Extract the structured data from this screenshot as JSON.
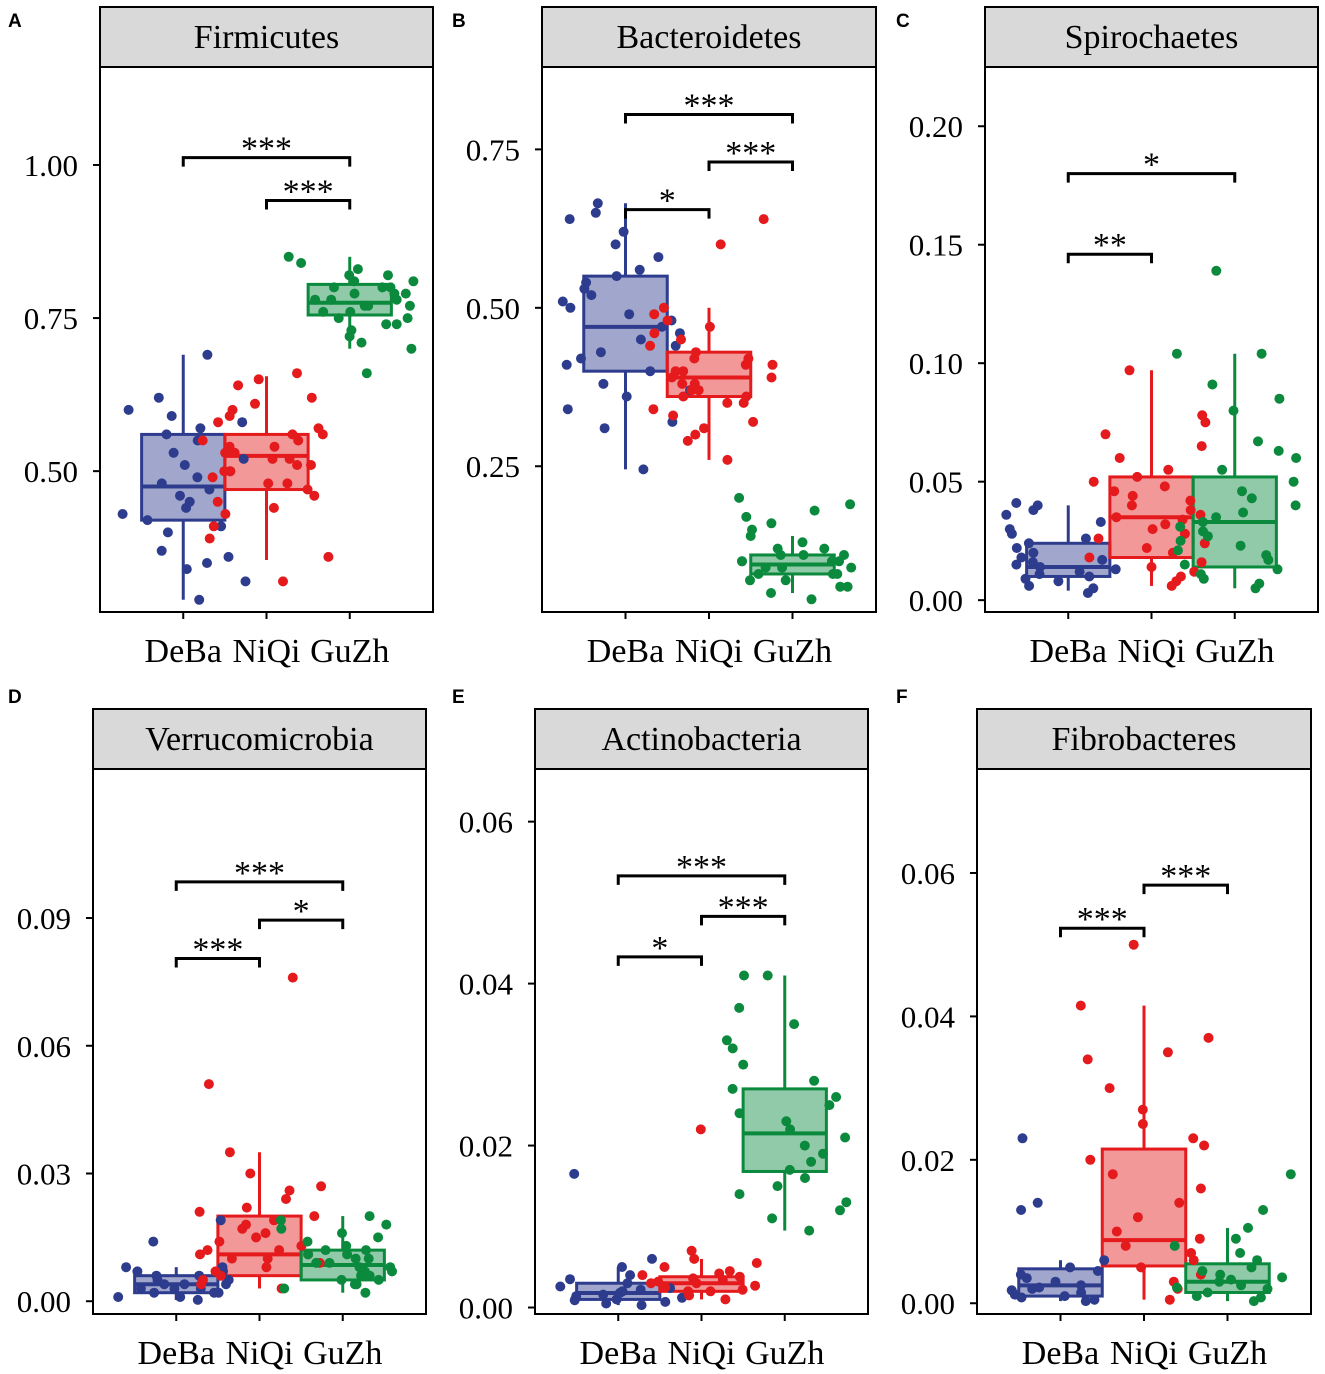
{
  "colors": {
    "DeBa": "#2E3C8E",
    "NiQi": "#E41A1C",
    "GuZh": "#0B8A3E",
    "strip_bg": "#D9D9D9"
  },
  "chart_data": [
    {
      "type": "box",
      "panel": "A",
      "title": "Firmicutes",
      "ylim": [
        0.27,
        1.16
      ],
      "yticks": [
        0.5,
        0.75,
        1.0
      ],
      "ytick_labels": [
        "0.50",
        "0.75",
        "1.00"
      ],
      "categories": [
        "DeBa",
        "NiQi",
        "GuZh"
      ],
      "boxes": [
        {
          "q1": 0.42,
          "median": 0.475,
          "q3": 0.56,
          "whisker_low": 0.29,
          "whisker_high": 0.69
        },
        {
          "q1": 0.47,
          "median": 0.525,
          "q3": 0.56,
          "whisker_low": 0.355,
          "whisker_high": 0.655
        },
        {
          "q1": 0.755,
          "median": 0.775,
          "q3": 0.805,
          "whisker_low": 0.7,
          "whisker_high": 0.85
        }
      ],
      "points": [
        [
          0.29,
          0.32,
          0.34,
          0.35,
          0.36,
          0.37,
          0.4,
          0.41,
          0.42,
          0.43,
          0.44,
          0.45,
          0.46,
          0.47,
          0.48,
          0.49,
          0.5,
          0.51,
          0.52,
          0.53,
          0.55,
          0.56,
          0.57,
          0.58,
          0.59,
          0.6,
          0.62,
          0.69
        ],
        [
          0.32,
          0.36,
          0.39,
          0.41,
          0.43,
          0.44,
          0.45,
          0.46,
          0.47,
          0.48,
          0.48,
          0.49,
          0.5,
          0.5,
          0.51,
          0.51,
          0.52,
          0.52,
          0.53,
          0.53,
          0.54,
          0.54,
          0.55,
          0.55,
          0.56,
          0.56,
          0.57,
          0.58,
          0.59,
          0.6,
          0.61,
          0.62,
          0.64,
          0.65,
          0.66
        ],
        [
          0.66,
          0.7,
          0.71,
          0.72,
          0.73,
          0.74,
          0.74,
          0.75,
          0.75,
          0.76,
          0.76,
          0.77,
          0.77,
          0.77,
          0.78,
          0.78,
          0.78,
          0.79,
          0.79,
          0.79,
          0.8,
          0.8,
          0.8,
          0.81,
          0.81,
          0.82,
          0.82,
          0.83,
          0.84,
          0.85
        ]
      ],
      "brackets": [
        {
          "from": 0,
          "to": 2,
          "y": 1.012,
          "label": "***"
        },
        {
          "from": 1,
          "to": 2,
          "y": 0.942,
          "label": "***"
        }
      ]
    },
    {
      "type": "box",
      "panel": "B",
      "title": "Bacteroidetes",
      "ylim": [
        0.02,
        0.88
      ],
      "yticks": [
        0.25,
        0.5,
        0.75
      ],
      "ytick_labels": [
        "0.25",
        "0.50",
        "0.75"
      ],
      "categories": [
        "DeBa",
        "NiQi",
        "GuZh"
      ],
      "boxes": [
        {
          "q1": 0.4,
          "median": 0.47,
          "q3": 0.55,
          "whisker_low": 0.245,
          "whisker_high": 0.665
        },
        {
          "q1": 0.36,
          "median": 0.39,
          "q3": 0.43,
          "whisker_low": 0.26,
          "whisker_high": 0.5
        },
        {
          "q1": 0.08,
          "median": 0.095,
          "q3": 0.11,
          "whisker_low": 0.05,
          "whisker_high": 0.14
        }
      ],
      "points": [
        [
          0.245,
          0.31,
          0.32,
          0.34,
          0.36,
          0.37,
          0.38,
          0.4,
          0.41,
          0.42,
          0.43,
          0.44,
          0.45,
          0.46,
          0.47,
          0.48,
          0.49,
          0.5,
          0.51,
          0.52,
          0.53,
          0.54,
          0.55,
          0.56,
          0.58,
          0.6,
          0.62,
          0.64,
          0.65,
          0.665
        ],
        [
          0.26,
          0.29,
          0.3,
          0.31,
          0.32,
          0.33,
          0.34,
          0.35,
          0.35,
          0.36,
          0.36,
          0.37,
          0.37,
          0.38,
          0.38,
          0.39,
          0.39,
          0.4,
          0.4,
          0.41,
          0.41,
          0.42,
          0.42,
          0.43,
          0.44,
          0.45,
          0.46,
          0.47,
          0.48,
          0.49,
          0.5,
          0.6,
          0.64
        ],
        [
          0.04,
          0.05,
          0.06,
          0.06,
          0.07,
          0.07,
          0.08,
          0.08,
          0.08,
          0.09,
          0.09,
          0.09,
          0.1,
          0.1,
          0.1,
          0.1,
          0.11,
          0.11,
          0.11,
          0.12,
          0.12,
          0.13,
          0.14,
          0.15,
          0.16,
          0.17,
          0.18,
          0.19,
          0.2
        ]
      ],
      "brackets": [
        {
          "from": 0,
          "to": 2,
          "y": 0.805,
          "label": "***"
        },
        {
          "from": 1,
          "to": 2,
          "y": 0.73,
          "label": "***"
        },
        {
          "from": 0,
          "to": 1,
          "y": 0.655,
          "label": "*"
        }
      ]
    },
    {
      "type": "box",
      "panel": "C",
      "title": "Spirochaetes",
      "ylim": [
        -0.005,
        0.225
      ],
      "yticks": [
        0.0,
        0.05,
        0.1,
        0.15,
        0.2
      ],
      "ytick_labels": [
        "0.00",
        "0.05",
        "0.10",
        "0.15",
        "0.20"
      ],
      "categories": [
        "DeBa",
        "NiQi",
        "GuZh"
      ],
      "boxes": [
        {
          "q1": 0.01,
          "median": 0.014,
          "q3": 0.024,
          "whisker_low": 0.004,
          "whisker_high": 0.04
        },
        {
          "q1": 0.018,
          "median": 0.035,
          "q3": 0.052,
          "whisker_low": 0.006,
          "whisker_high": 0.097
        },
        {
          "q1": 0.014,
          "median": 0.033,
          "q3": 0.052,
          "whisker_low": 0.005,
          "whisker_high": 0.104
        }
      ],
      "points": [
        [
          0.003,
          0.005,
          0.006,
          0.008,
          0.009,
          0.01,
          0.011,
          0.012,
          0.013,
          0.014,
          0.015,
          0.016,
          0.017,
          0.018,
          0.02,
          0.022,
          0.024,
          0.026,
          0.028,
          0.03,
          0.033,
          0.036,
          0.038,
          0.04,
          0.041
        ],
        [
          0.006,
          0.008,
          0.01,
          0.012,
          0.014,
          0.016,
          0.018,
          0.02,
          0.022,
          0.024,
          0.026,
          0.028,
          0.03,
          0.032,
          0.034,
          0.035,
          0.036,
          0.038,
          0.04,
          0.042,
          0.044,
          0.046,
          0.048,
          0.05,
          0.052,
          0.055,
          0.06,
          0.065,
          0.07,
          0.075,
          0.078,
          0.097
        ],
        [
          0.005,
          0.007,
          0.009,
          0.011,
          0.013,
          0.015,
          0.017,
          0.019,
          0.021,
          0.023,
          0.025,
          0.027,
          0.029,
          0.031,
          0.033,
          0.035,
          0.037,
          0.04,
          0.043,
          0.046,
          0.05,
          0.055,
          0.06,
          0.063,
          0.067,
          0.08,
          0.085,
          0.091,
          0.104,
          0.104,
          0.139
        ]
      ],
      "brackets": [
        {
          "from": 0,
          "to": 2,
          "y": 0.18,
          "label": "*"
        },
        {
          "from": 0,
          "to": 1,
          "y": 0.146,
          "label": "**"
        }
      ]
    },
    {
      "type": "box",
      "panel": "D",
      "title": "Verrucomicrobia",
      "ylim": [
        -0.003,
        0.125
      ],
      "yticks": [
        0.0,
        0.03,
        0.06,
        0.09
      ],
      "ytick_labels": [
        "0.00",
        "0.03",
        "0.06",
        "0.09"
      ],
      "categories": [
        "DeBa",
        "NiQi",
        "GuZh"
      ],
      "boxes": [
        {
          "q1": 0.002,
          "median": 0.004,
          "q3": 0.006,
          "whisker_low": 0.0003,
          "whisker_high": 0.008
        },
        {
          "q1": 0.006,
          "median": 0.011,
          "q3": 0.02,
          "whisker_low": 0.003,
          "whisker_high": 0.035
        },
        {
          "q1": 0.005,
          "median": 0.0085,
          "q3": 0.012,
          "whisker_low": 0.002,
          "whisker_high": 0.02
        }
      ],
      "points": [
        [
          0.0003,
          0.001,
          0.001,
          0.002,
          0.002,
          0.002,
          0.003,
          0.003,
          0.003,
          0.004,
          0.004,
          0.004,
          0.005,
          0.005,
          0.006,
          0.006,
          0.007,
          0.007,
          0.008,
          0.008,
          0.014,
          0.019
        ],
        [
          0.003,
          0.004,
          0.005,
          0.006,
          0.007,
          0.008,
          0.009,
          0.01,
          0.01,
          0.011,
          0.011,
          0.012,
          0.012,
          0.013,
          0.014,
          0.015,
          0.016,
          0.017,
          0.018,
          0.019,
          0.02,
          0.021,
          0.022,
          0.024,
          0.026,
          0.027,
          0.03,
          0.035,
          0.051,
          0.076
        ],
        [
          0.002,
          0.003,
          0.004,
          0.004,
          0.005,
          0.005,
          0.006,
          0.006,
          0.007,
          0.007,
          0.008,
          0.008,
          0.009,
          0.009,
          0.01,
          0.01,
          0.011,
          0.011,
          0.012,
          0.012,
          0.013,
          0.014,
          0.015,
          0.016,
          0.017,
          0.018,
          0.019,
          0.02
        ]
      ],
      "brackets": [
        {
          "from": 0,
          "to": 2,
          "y": 0.0985,
          "label": "***"
        },
        {
          "from": 1,
          "to": 2,
          "y": 0.0895,
          "label": "*"
        },
        {
          "from": 0,
          "to": 1,
          "y": 0.0805,
          "label": "***"
        }
      ]
    },
    {
      "type": "box",
      "panel": "E",
      "title": "Actinobacteria",
      "ylim": [
        -0.0008,
        0.0665
      ],
      "yticks": [
        0.0,
        0.02,
        0.04,
        0.06
      ],
      "ytick_labels": [
        "0.00",
        "0.02",
        "0.04",
        "0.06"
      ],
      "categories": [
        "DeBa",
        "NiQi",
        "GuZh"
      ],
      "boxes": [
        {
          "q1": 0.001,
          "median": 0.0018,
          "q3": 0.003,
          "whisker_low": 0.0003,
          "whisker_high": 0.005
        },
        {
          "q1": 0.002,
          "median": 0.003,
          "q3": 0.0038,
          "whisker_low": 0.001,
          "whisker_high": 0.006
        },
        {
          "q1": 0.0168,
          "median": 0.0215,
          "q3": 0.027,
          "whisker_low": 0.0095,
          "whisker_high": 0.041
        }
      ],
      "points": [
        [
          0.0003,
          0.0005,
          0.0007,
          0.0009,
          0.001,
          0.0012,
          0.0014,
          0.0016,
          0.0018,
          0.002,
          0.0022,
          0.0024,
          0.0026,
          0.003,
          0.0035,
          0.004,
          0.005,
          0.006,
          0.0165
        ],
        [
          0.001,
          0.0015,
          0.002,
          0.002,
          0.0022,
          0.0025,
          0.0027,
          0.003,
          0.003,
          0.0032,
          0.0034,
          0.0036,
          0.0038,
          0.004,
          0.0042,
          0.0045,
          0.005,
          0.0055,
          0.006,
          0.007,
          0.022
        ],
        [
          0.0095,
          0.011,
          0.012,
          0.013,
          0.014,
          0.015,
          0.016,
          0.017,
          0.018,
          0.019,
          0.02,
          0.021,
          0.022,
          0.023,
          0.024,
          0.025,
          0.026,
          0.027,
          0.028,
          0.03,
          0.032,
          0.033,
          0.035,
          0.037,
          0.041,
          0.041
        ]
      ],
      "brackets": [
        {
          "from": 0,
          "to": 2,
          "y": 0.0533,
          "label": "***"
        },
        {
          "from": 1,
          "to": 2,
          "y": 0.0483,
          "label": "***"
        },
        {
          "from": 0,
          "to": 1,
          "y": 0.0433,
          "label": "*"
        }
      ]
    },
    {
      "type": "box",
      "panel": "F",
      "title": "Fibrobacteres",
      "ylim": [
        -0.0015,
        0.0745
      ],
      "yticks": [
        0.0,
        0.02,
        0.04,
        0.06
      ],
      "ytick_labels": [
        "0.00",
        "0.02",
        "0.04",
        "0.06"
      ],
      "categories": [
        "DeBa",
        "NiQi",
        "GuZh"
      ],
      "boxes": [
        {
          "q1": 0.001,
          "median": 0.0025,
          "q3": 0.0048,
          "whisker_low": 0.0003,
          "whisker_high": 0.006
        },
        {
          "q1": 0.0052,
          "median": 0.0088,
          "q3": 0.0215,
          "whisker_low": 0.0005,
          "whisker_high": 0.0415
        },
        {
          "q1": 0.0015,
          "median": 0.003,
          "q3": 0.0055,
          "whisker_low": 0.0003,
          "whisker_high": 0.0105
        }
      ],
      "points": [
        [
          0.0003,
          0.0005,
          0.0008,
          0.001,
          0.0012,
          0.0015,
          0.0018,
          0.002,
          0.0022,
          0.0025,
          0.003,
          0.0035,
          0.004,
          0.0045,
          0.005,
          0.006,
          0.013,
          0.014,
          0.023
        ],
        [
          0.0005,
          0.002,
          0.003,
          0.004,
          0.005,
          0.006,
          0.007,
          0.008,
          0.009,
          0.01,
          0.012,
          0.014,
          0.016,
          0.018,
          0.02,
          0.022,
          0.023,
          0.025,
          0.027,
          0.03,
          0.034,
          0.035,
          0.037,
          0.0415,
          0.05
        ],
        [
          0.0003,
          0.0008,
          0.001,
          0.0015,
          0.002,
          0.0022,
          0.0025,
          0.003,
          0.0033,
          0.0036,
          0.004,
          0.0045,
          0.005,
          0.006,
          0.007,
          0.008,
          0.009,
          0.0105,
          0.013,
          0.018
        ]
      ],
      "brackets": [
        {
          "from": 1,
          "to": 2,
          "y": 0.0583,
          "label": "***"
        },
        {
          "from": 0,
          "to": 1,
          "y": 0.0523,
          "label": "***"
        }
      ]
    }
  ]
}
